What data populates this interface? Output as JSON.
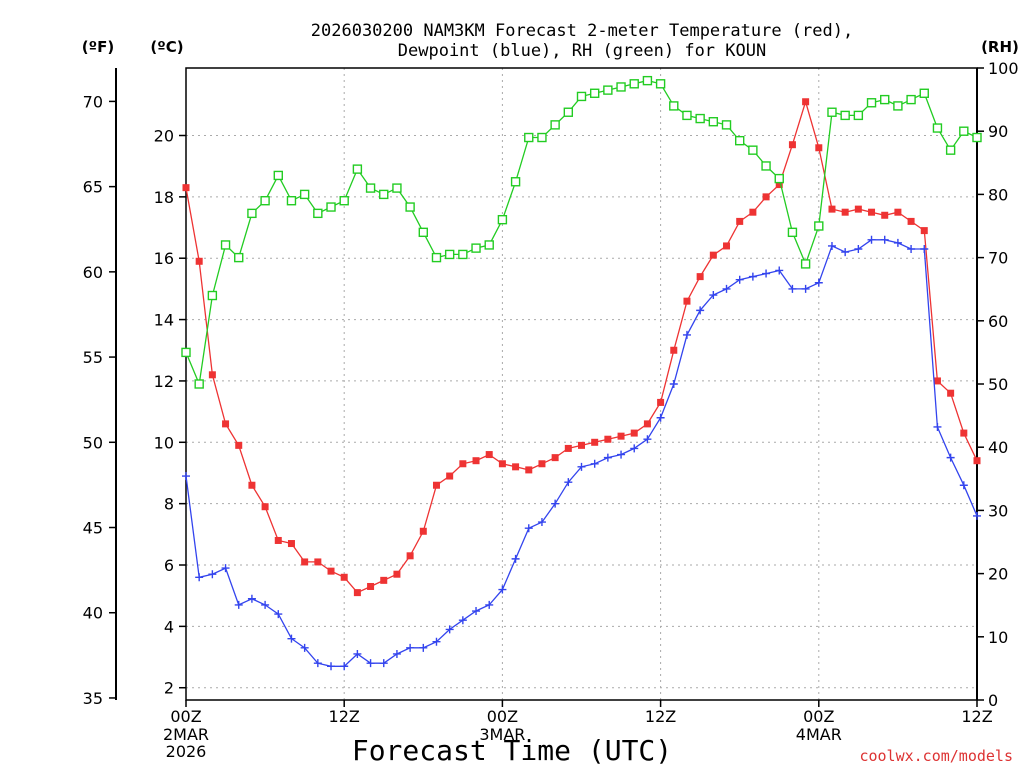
{
  "chart_data": {
    "type": "line",
    "title_lines": [
      "2026030200 NAM3KM Forecast 2-meter Temperature (red),",
      "Dewpoint (blue), RH (green) for KOUN"
    ],
    "xlabel": "Forecast Time (UTC)",
    "watermark": "coolwx.com/models",
    "left_unit_f": "(ºF)",
    "left_unit_c": "(ºC)",
    "right_unit": "(RH)",
    "x_ticks": [
      {
        "hour": 0,
        "label": "00Z",
        "sub": [
          "2MAR",
          "2026"
        ]
      },
      {
        "hour": 12,
        "label": "12Z",
        "sub": []
      },
      {
        "hour": 24,
        "label": "00Z",
        "sub": [
          "3MAR"
        ]
      },
      {
        "hour": 36,
        "label": "12Z",
        "sub": []
      },
      {
        "hour": 48,
        "label": "00Z",
        "sub": [
          "4MAR"
        ]
      },
      {
        "hour": 60,
        "label": "12Z",
        "sub": []
      }
    ],
    "xlim": [
      0,
      60
    ],
    "ylim_c": [
      1.6,
      22.2
    ],
    "ylim_rh": [
      0,
      100
    ],
    "c_ticks": [
      2,
      4,
      6,
      8,
      10,
      12,
      14,
      16,
      18,
      20
    ],
    "f_ticks": [
      35,
      40,
      45,
      50,
      55,
      60,
      65,
      70
    ],
    "rh_ticks": [
      0,
      10,
      20,
      30,
      40,
      50,
      60,
      70,
      80,
      90,
      100
    ],
    "x": [
      0,
      1,
      2,
      3,
      4,
      5,
      6,
      7,
      8,
      9,
      10,
      11,
      12,
      13,
      14,
      15,
      16,
      17,
      18,
      19,
      20,
      21,
      22,
      23,
      24,
      25,
      26,
      27,
      28,
      29,
      30,
      31,
      32,
      33,
      34,
      35,
      36,
      37,
      38,
      39,
      40,
      41,
      42,
      43,
      44,
      45,
      46,
      47,
      48,
      49,
      50,
      51,
      52,
      53,
      54,
      55,
      56,
      57,
      58,
      59,
      60
    ],
    "series": [
      {
        "name": "2-meter Temperature",
        "unit": "C",
        "color": "#ee3333",
        "marker": "filled-square",
        "values": [
          18.3,
          15.9,
          12.2,
          10.6,
          9.9,
          8.6,
          7.9,
          6.8,
          6.7,
          6.1,
          6.1,
          5.8,
          5.6,
          5.1,
          5.3,
          5.5,
          5.7,
          6.3,
          7.1,
          8.6,
          8.9,
          9.3,
          9.4,
          9.6,
          9.3,
          9.2,
          9.1,
          9.3,
          9.5,
          9.8,
          9.9,
          10.0,
          10.1,
          10.2,
          10.3,
          10.6,
          11.3,
          13.0,
          14.6,
          15.4,
          16.1,
          16.4,
          17.2,
          17.5,
          18.0,
          18.4,
          19.7,
          21.1,
          19.6,
          17.6,
          17.5,
          17.6,
          17.5,
          17.4,
          17.5,
          17.2,
          16.9,
          12.0,
          11.6,
          10.3,
          9.4
        ]
      },
      {
        "name": "Dewpoint",
        "unit": "C",
        "color": "#3344ee",
        "marker": "plus",
        "values": [
          8.9,
          5.6,
          5.7,
          5.9,
          4.7,
          4.9,
          4.7,
          4.4,
          3.6,
          3.3,
          2.8,
          2.7,
          2.7,
          3.1,
          2.8,
          2.8,
          3.1,
          3.3,
          3.3,
          3.5,
          3.9,
          4.2,
          4.5,
          4.7,
          5.2,
          6.2,
          7.2,
          7.4,
          8.0,
          8.7,
          9.2,
          9.3,
          9.5,
          9.6,
          9.8,
          10.1,
          10.8,
          11.9,
          13.5,
          14.3,
          14.8,
          15.0,
          15.3,
          15.4,
          15.5,
          15.6,
          15.0,
          15.0,
          15.2,
          16.4,
          16.2,
          16.3,
          16.6,
          16.6,
          16.5,
          16.3,
          16.3,
          10.5,
          9.5,
          8.6,
          7.6
        ]
      },
      {
        "name": "RH",
        "unit": "%",
        "color": "#22cc22",
        "marker": "open-square",
        "values": [
          55,
          50,
          64,
          72,
          70,
          77,
          79,
          83,
          79,
          80,
          77,
          78,
          79,
          84,
          81,
          80,
          81,
          78,
          74,
          70,
          70.5,
          70.5,
          71.5,
          72,
          76,
          82,
          89,
          89,
          91,
          93,
          95.5,
          96,
          96.5,
          97,
          97.5,
          98,
          97.5,
          94,
          92.5,
          92,
          91.5,
          91,
          88.5,
          87,
          84.5,
          82.5,
          74,
          69,
          75,
          93,
          92.5,
          92.5,
          94.5,
          95,
          94,
          95,
          96,
          90.5,
          87,
          90,
          89
        ]
      }
    ]
  }
}
